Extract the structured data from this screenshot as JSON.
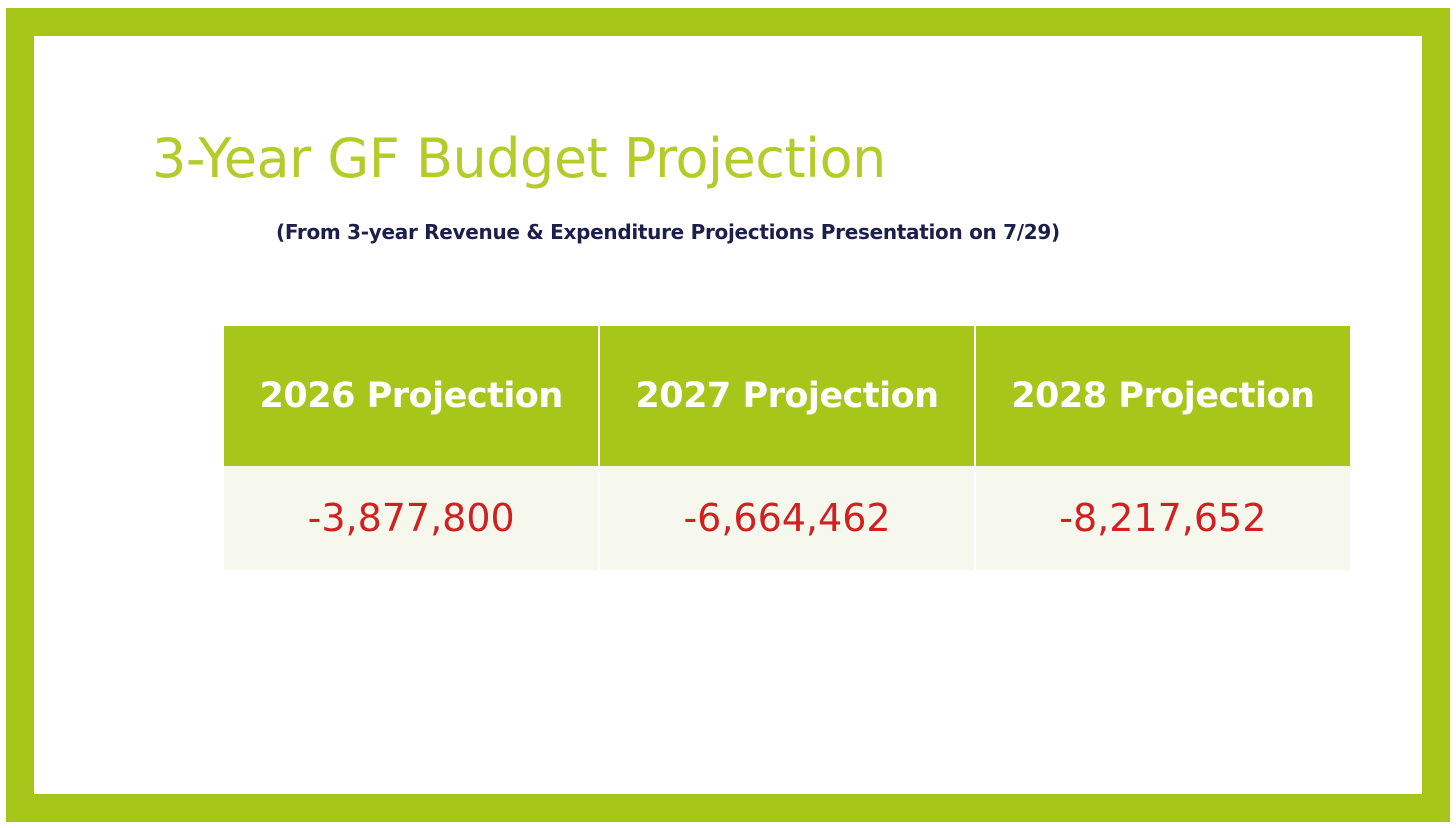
{
  "slide": {
    "title": "3-Year GF Budget Projection",
    "subtitle": "(From 3-year Revenue & Expenditure Projections Presentation on 7/29)"
  },
  "table": {
    "headers": [
      "2026 Projection",
      "2027 Projection",
      "2028 Projection"
    ],
    "values": [
      "-3,877,800",
      "-6,664,462",
      "-8,217,652"
    ]
  },
  "colors": {
    "accent_green": "#a6c619",
    "title_green": "#b4cc2a",
    "subtitle_navy": "#1c1f4a",
    "value_red": "#d02020"
  }
}
